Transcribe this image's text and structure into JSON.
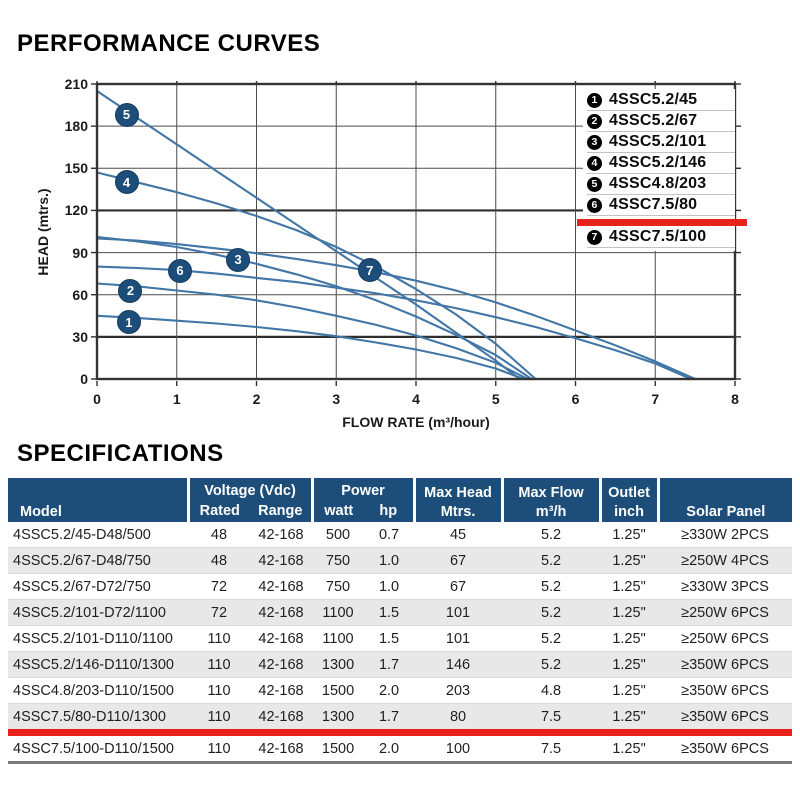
{
  "page": {
    "title1": "PERFORMANCE CURVES",
    "title2": "SPECIFICATIONS"
  },
  "colors": {
    "curve": "#4176a6",
    "marker_badge": "#1d4d79",
    "header_blue": "#1d4e79",
    "highlight_red": "#e8231c",
    "row_alt_gray": "#e8e8e8"
  },
  "chart": {
    "y_axis_label": "HEAD (mtrs.)",
    "x_axis_label": "FLOW RATE (m³/hour)",
    "y_ticks": [
      210,
      180,
      150,
      120,
      90,
      60,
      30,
      0
    ],
    "x_ticks": [
      0,
      1,
      2,
      3,
      4,
      5,
      6,
      7,
      8
    ],
    "legend": {
      "items": [
        {
          "num": "1",
          "label": "4SSC5.2/45"
        },
        {
          "num": "2",
          "label": "4SSC5.2/67"
        },
        {
          "num": "3",
          "label": "4SSC5.2/101"
        },
        {
          "num": "4",
          "label": "4SSC5.2/146"
        },
        {
          "num": "5",
          "label": "4SSC4.8/203"
        },
        {
          "num": "6",
          "label": "4SSC7.5/80"
        },
        {
          "num": "7",
          "label": "4SSC7.5/100"
        }
      ],
      "highlighted_item": "4SSC7.5/80",
      "highlight_after_index": 5
    }
  },
  "chart_data": {
    "type": "line",
    "title": "PERFORMANCE CURVES",
    "xlabel": "FLOW RATE (m³/hour)",
    "ylabel": "HEAD (mtrs.)",
    "xlim": [
      0,
      8
    ],
    "ylim": [
      0,
      210
    ],
    "grid": true,
    "legend_position": "top-right",
    "series": [
      {
        "name": "4SSC5.2/45",
        "badge": "1",
        "badge_at": [
          0.4,
          40.5
        ],
        "points": [
          [
            0,
            45
          ],
          [
            0.5,
            43.5
          ],
          [
            1,
            41.5
          ],
          [
            1.5,
            39.5
          ],
          [
            2,
            37
          ],
          [
            2.5,
            34
          ],
          [
            3,
            30.5
          ],
          [
            3.5,
            26
          ],
          [
            4,
            21
          ],
          [
            4.5,
            15
          ],
          [
            5,
            7.5
          ],
          [
            5.35,
            0
          ]
        ]
      },
      {
        "name": "4SSC5.2/67",
        "badge": "2",
        "badge_at": [
          0.42,
          63
        ],
        "points": [
          [
            0,
            68
          ],
          [
            0.5,
            66
          ],
          [
            1,
            63
          ],
          [
            1.5,
            60
          ],
          [
            2,
            56
          ],
          [
            2.5,
            51
          ],
          [
            3,
            45
          ],
          [
            3.5,
            38.5
          ],
          [
            4,
            31
          ],
          [
            4.5,
            22
          ],
          [
            5,
            11.5
          ],
          [
            5.4,
            0
          ]
        ]
      },
      {
        "name": "4SSC5.2/101",
        "badge": "3",
        "badge_at": [
          1.77,
          85
        ],
        "points": [
          [
            0,
            101
          ],
          [
            0.5,
            98
          ],
          [
            1,
            94
          ],
          [
            1.5,
            88.5
          ],
          [
            2,
            82
          ],
          [
            2.5,
            74.5
          ],
          [
            3,
            66
          ],
          [
            3.5,
            56
          ],
          [
            4,
            44.5
          ],
          [
            4.5,
            31.5
          ],
          [
            5,
            17
          ],
          [
            5.45,
            0
          ]
        ]
      },
      {
        "name": "4SSC5.2/146",
        "badge": "4",
        "badge_at": [
          0.37,
          140
        ],
        "points": [
          [
            0,
            147
          ],
          [
            0.5,
            140
          ],
          [
            1,
            133
          ],
          [
            1.5,
            125
          ],
          [
            2,
            116
          ],
          [
            2.5,
            106
          ],
          [
            3,
            94
          ],
          [
            3.5,
            80
          ],
          [
            4,
            64
          ],
          [
            4.5,
            46
          ],
          [
            5,
            25
          ],
          [
            5.5,
            0
          ]
        ]
      },
      {
        "name": "4SSC4.8/203",
        "badge": "5",
        "badge_at": [
          0.37,
          188
        ],
        "points": [
          [
            0,
            205
          ],
          [
            0.5,
            186
          ],
          [
            1,
            167
          ],
          [
            1.5,
            148
          ],
          [
            2,
            129
          ],
          [
            2.5,
            110
          ],
          [
            3,
            91
          ],
          [
            3.5,
            72
          ],
          [
            4,
            53
          ],
          [
            4.5,
            33
          ],
          [
            5,
            13
          ],
          [
            5.3,
            0
          ]
        ]
      },
      {
        "name": "4SSC7.5/80",
        "badge": "6",
        "badge_at": [
          1.04,
          77
        ],
        "points": [
          [
            0,
            80
          ],
          [
            0.5,
            79
          ],
          [
            1,
            77.5
          ],
          [
            1.5,
            75
          ],
          [
            2,
            72
          ],
          [
            2.5,
            69
          ],
          [
            3,
            65
          ],
          [
            3.5,
            61
          ],
          [
            4,
            56
          ],
          [
            4.5,
            50.5
          ],
          [
            5,
            44
          ],
          [
            5.5,
            37
          ],
          [
            6,
            29
          ],
          [
            6.5,
            20.5
          ],
          [
            7,
            11
          ],
          [
            7.45,
            0
          ]
        ]
      },
      {
        "name": "4SSC7.5/100",
        "badge": "7",
        "badge_at": [
          3.42,
          77.5
        ],
        "points": [
          [
            0,
            100
          ],
          [
            0.5,
            98.5
          ],
          [
            1,
            96
          ],
          [
            1.5,
            93
          ],
          [
            2,
            89.5
          ],
          [
            2.5,
            85.5
          ],
          [
            3,
            81
          ],
          [
            3.5,
            76
          ],
          [
            4,
            70
          ],
          [
            4.5,
            63
          ],
          [
            5,
            54.5
          ],
          [
            5.5,
            45
          ],
          [
            6,
            34.5
          ],
          [
            6.5,
            24
          ],
          [
            7,
            12.5
          ],
          [
            7.5,
            0
          ]
        ]
      }
    ]
  },
  "table": {
    "columns": {
      "model": "Model",
      "voltage_group": "Voltage (Vdc)",
      "rated": "Rated",
      "range": "Range",
      "power_group": "Power",
      "watt": "watt",
      "hp": "hp",
      "max_head_1": "Max Head",
      "max_head_2": "Mtrs.",
      "max_flow_1": "Max Flow",
      "max_flow_2": "m³/h",
      "outlet_1": "Outlet",
      "outlet_2": "inch",
      "solar": "Solar Panel"
    },
    "rows": [
      [
        "4SSC5.2/45-D48/500",
        "48",
        "42-168",
        "500",
        "0.7",
        "45",
        "5.2",
        "1.25\"",
        "≥330W 2PCS"
      ],
      [
        "4SSC5.2/67-D48/750",
        "48",
        "42-168",
        "750",
        "1.0",
        "67",
        "5.2",
        "1.25\"",
        "≥250W 4PCS"
      ],
      [
        "4SSC5.2/67-D72/750",
        "72",
        "42-168",
        "750",
        "1.0",
        "67",
        "5.2",
        "1.25\"",
        "≥330W 3PCS"
      ],
      [
        "4SSC5.2/101-D72/1100",
        "72",
        "42-168",
        "1100",
        "1.5",
        "101",
        "5.2",
        "1.25\"",
        "≥250W 6PCS"
      ],
      [
        "4SSC5.2/101-D110/1100",
        "110",
        "42-168",
        "1100",
        "1.5",
        "101",
        "5.2",
        "1.25\"",
        "≥250W 6PCS"
      ],
      [
        "4SSC5.2/146-D110/1300",
        "110",
        "42-168",
        "1300",
        "1.7",
        "146",
        "5.2",
        "1.25\"",
        "≥350W 6PCS"
      ],
      [
        "4SSC4.8/203-D110/1500",
        "110",
        "42-168",
        "1500",
        "2.0",
        "203",
        "4.8",
        "1.25\"",
        "≥350W 6PCS"
      ],
      [
        "4SSC7.5/80-D110/1300",
        "110",
        "42-168",
        "1300",
        "1.7",
        "80",
        "7.5",
        "1.25\"",
        "≥350W 6PCS"
      ],
      [
        "4SSC7.5/100-D110/1500",
        "110",
        "42-168",
        "1500",
        "2.0",
        "100",
        "7.5",
        "1.25\"",
        "≥350W 6PCS"
      ]
    ],
    "highlight_row_index": 7,
    "highlighted_model": "4SSC7.5/80-D110/1300"
  }
}
